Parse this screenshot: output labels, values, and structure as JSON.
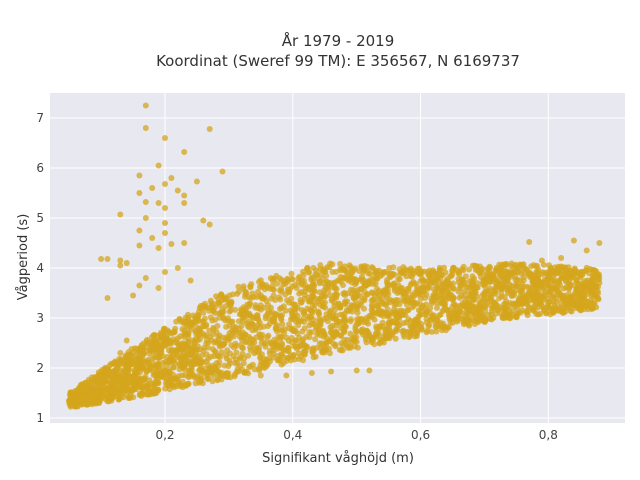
{
  "chart_data": {
    "type": "scatter",
    "title": "År 1979 - 2019",
    "subtitle": "Koordinat (Sweref 99 TM): E 356567, N 6169737",
    "xlabel": "Signifikant våghöjd (m)",
    "ylabel": "Vågperiod (s)",
    "xlim": [
      0.02,
      0.92
    ],
    "ylim": [
      0.9,
      7.5
    ],
    "x_ticks": [
      0.2,
      0.4,
      0.6,
      0.8
    ],
    "x_tick_labels": [
      "0,2",
      "0,4",
      "0,6",
      "0,8"
    ],
    "y_ticks": [
      1,
      2,
      3,
      4,
      5,
      6,
      7
    ],
    "y_tick_labels": [
      "1",
      "2",
      "3",
      "4",
      "5",
      "6",
      "7"
    ],
    "grid": true,
    "legend": "none",
    "background_color": "#e8e8f0",
    "grid_color": "#ffffff",
    "marker_color": "#d4a51c",
    "marker_opacity": 0.75,
    "dense_band": {
      "x_range": [
        0.05,
        0.88
      ],
      "lower_edge": [
        [
          0.05,
          1.2
        ],
        [
          0.15,
          1.4
        ],
        [
          0.3,
          1.8
        ],
        [
          0.5,
          2.4
        ],
        [
          0.7,
          2.9
        ],
        [
          0.88,
          3.2
        ]
      ],
      "upper_edge": [
        [
          0.05,
          1.5
        ],
        [
          0.15,
          2.4
        ],
        [
          0.3,
          3.6
        ],
        [
          0.45,
          4.1
        ],
        [
          0.6,
          4.0
        ],
        [
          0.75,
          4.1
        ],
        [
          0.88,
          4.0
        ]
      ]
    },
    "points": [
      {
        "x": 0.17,
        "y": 7.25
      },
      {
        "x": 0.17,
        "y": 6.8
      },
      {
        "x": 0.2,
        "y": 6.6
      },
      {
        "x": 0.27,
        "y": 6.78
      },
      {
        "x": 0.23,
        "y": 6.32
      },
      {
        "x": 0.19,
        "y": 6.05
      },
      {
        "x": 0.29,
        "y": 5.93
      },
      {
        "x": 0.16,
        "y": 5.85
      },
      {
        "x": 0.21,
        "y": 5.8
      },
      {
        "x": 0.25,
        "y": 5.73
      },
      {
        "x": 0.2,
        "y": 5.68
      },
      {
        "x": 0.18,
        "y": 5.6
      },
      {
        "x": 0.22,
        "y": 5.55
      },
      {
        "x": 0.16,
        "y": 5.5
      },
      {
        "x": 0.23,
        "y": 5.45
      },
      {
        "x": 0.17,
        "y": 5.32
      },
      {
        "x": 0.19,
        "y": 5.3
      },
      {
        "x": 0.23,
        "y": 5.3
      },
      {
        "x": 0.2,
        "y": 5.2
      },
      {
        "x": 0.13,
        "y": 5.07
      },
      {
        "x": 0.17,
        "y": 5.0
      },
      {
        "x": 0.26,
        "y": 4.95
      },
      {
        "x": 0.2,
        "y": 4.9
      },
      {
        "x": 0.27,
        "y": 4.87
      },
      {
        "x": 0.16,
        "y": 4.75
      },
      {
        "x": 0.2,
        "y": 4.7
      },
      {
        "x": 0.18,
        "y": 4.6
      },
      {
        "x": 0.23,
        "y": 4.5
      },
      {
        "x": 0.21,
        "y": 4.48
      },
      {
        "x": 0.16,
        "y": 4.45
      },
      {
        "x": 0.19,
        "y": 4.4
      },
      {
        "x": 0.1,
        "y": 4.18
      },
      {
        "x": 0.11,
        "y": 4.18
      },
      {
        "x": 0.13,
        "y": 4.15
      },
      {
        "x": 0.14,
        "y": 4.1
      },
      {
        "x": 0.13,
        "y": 4.05
      },
      {
        "x": 0.22,
        "y": 4.0
      },
      {
        "x": 0.2,
        "y": 3.92
      },
      {
        "x": 0.17,
        "y": 3.8
      },
      {
        "x": 0.24,
        "y": 3.75
      },
      {
        "x": 0.16,
        "y": 3.65
      },
      {
        "x": 0.19,
        "y": 3.6
      },
      {
        "x": 0.11,
        "y": 3.4
      },
      {
        "x": 0.15,
        "y": 3.45
      },
      {
        "x": 0.84,
        "y": 4.55
      },
      {
        "x": 0.88,
        "y": 4.5
      },
      {
        "x": 0.77,
        "y": 4.52
      },
      {
        "x": 0.86,
        "y": 4.35
      },
      {
        "x": 0.82,
        "y": 4.2
      },
      {
        "x": 0.79,
        "y": 4.15
      },
      {
        "x": 0.87,
        "y": 3.85
      },
      {
        "x": 0.88,
        "y": 3.7
      },
      {
        "x": 0.85,
        "y": 3.3
      },
      {
        "x": 0.05,
        "y": 1.35
      },
      {
        "x": 0.06,
        "y": 1.25
      },
      {
        "x": 0.07,
        "y": 1.45
      },
      {
        "x": 0.08,
        "y": 1.55
      },
      {
        "x": 0.09,
        "y": 1.3
      },
      {
        "x": 0.1,
        "y": 1.7
      },
      {
        "x": 0.11,
        "y": 1.95
      },
      {
        "x": 0.12,
        "y": 2.1
      },
      {
        "x": 0.13,
        "y": 2.3
      },
      {
        "x": 0.14,
        "y": 2.55
      },
      {
        "x": 0.5,
        "y": 1.95
      },
      {
        "x": 0.52,
        "y": 1.95
      },
      {
        "x": 0.46,
        "y": 1.93
      },
      {
        "x": 0.43,
        "y": 1.9
      },
      {
        "x": 0.39,
        "y": 1.85
      },
      {
        "x": 0.35,
        "y": 1.85
      }
    ]
  }
}
